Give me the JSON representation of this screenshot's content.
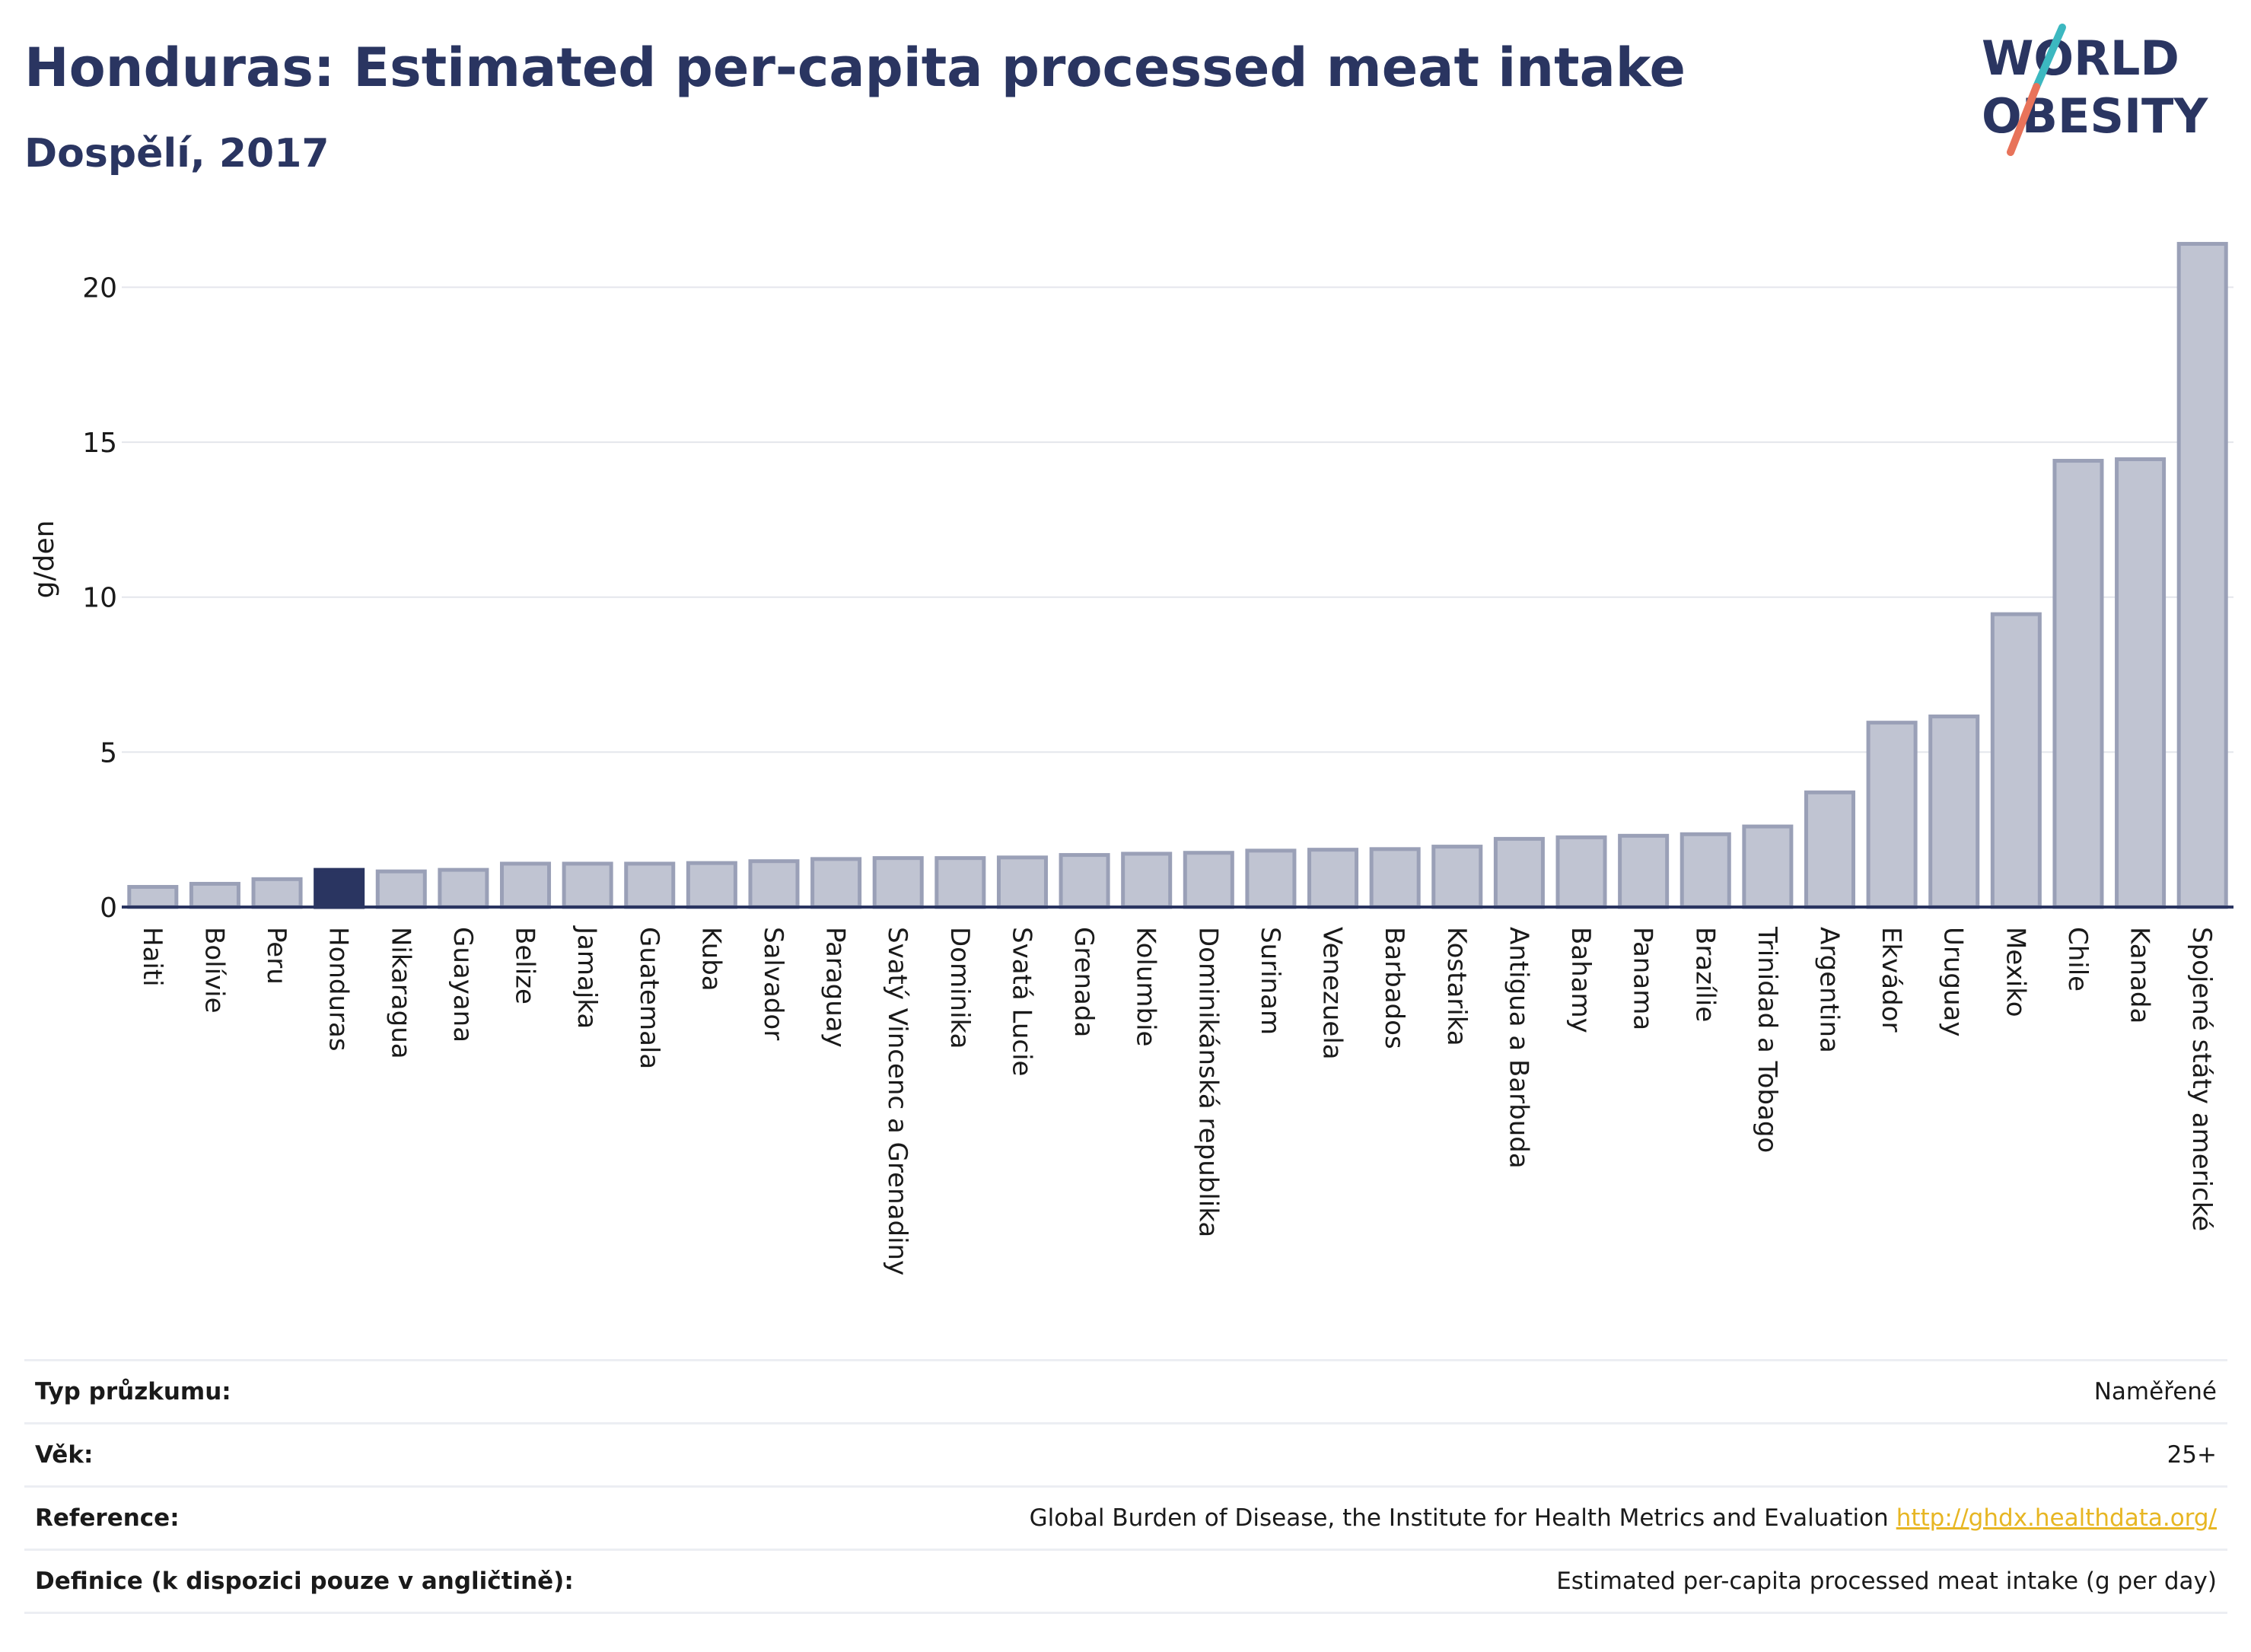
{
  "header": {
    "title": "Honduras: Estimated per-capita processed meat intake",
    "subtitle": "Dospělí, 2017"
  },
  "logo": {
    "line1": "WORLD",
    "line2": "OBESITY"
  },
  "colors": {
    "bar": "#c0c4d2",
    "bar_stroke": "#9aa0b7",
    "highlight": "#2a3561",
    "grid": "#e4e6ec",
    "axis": "#2a3561",
    "logo_text": "#2a3561",
    "logo_slash_top": "#3cb8c0",
    "logo_slash_bottom": "#e8735a"
  },
  "chart_data": {
    "type": "bar",
    "title": "Honduras: Estimated per-capita processed meat intake",
    "subtitle": "Dospělí, 2017",
    "ylabel": "g/den",
    "xlabel": "",
    "ylim": [
      0,
      22
    ],
    "yticks": [
      0,
      5,
      10,
      15,
      20
    ],
    "grid": true,
    "highlight": "Honduras",
    "categories": [
      "Haiti",
      "Bolívie",
      "Peru",
      "Honduras",
      "Nikaragua",
      "Guayana",
      "Belize",
      "Jamajka",
      "Guatemala",
      "Kuba",
      "Salvador",
      "Paraguay",
      "Svatý Vincenc a Grenadiny",
      "Dominika",
      "Svatá Lucie",
      "Grenada",
      "Kolumbie",
      "Dominikánská republika",
      "Surinam",
      "Venezuela",
      "Barbados",
      "Kostarika",
      "Antigua a Barbuda",
      "Bahamy",
      "Panama",
      "Brazílie",
      "Trinidad a Tobago",
      "Argentina",
      "Ekvádor",
      "Uruguay",
      "Mexiko",
      "Chile",
      "Kanada",
      "Spojené státy americké"
    ],
    "values": [
      0.65,
      0.75,
      0.9,
      1.2,
      1.15,
      1.2,
      1.4,
      1.4,
      1.4,
      1.42,
      1.48,
      1.55,
      1.58,
      1.58,
      1.6,
      1.68,
      1.72,
      1.75,
      1.82,
      1.85,
      1.87,
      1.95,
      2.2,
      2.25,
      2.3,
      2.35,
      2.6,
      3.7,
      5.95,
      6.15,
      9.45,
      14.4,
      14.45,
      21.4
    ]
  },
  "meta": {
    "rows": [
      {
        "key": "Typ průzkumu:",
        "value": "Naměřené"
      },
      {
        "key": "Věk:",
        "value": "25+"
      },
      {
        "key": "Reference:",
        "value": "Global Burden of Disease, the Institute for Health Metrics and Evaluation",
        "link": "http://ghdx.healthdata.org/"
      },
      {
        "key": "Definice (k dispozici pouze v angličtině):",
        "value": "Estimated per-capita processed meat intake (g per day)"
      }
    ]
  }
}
